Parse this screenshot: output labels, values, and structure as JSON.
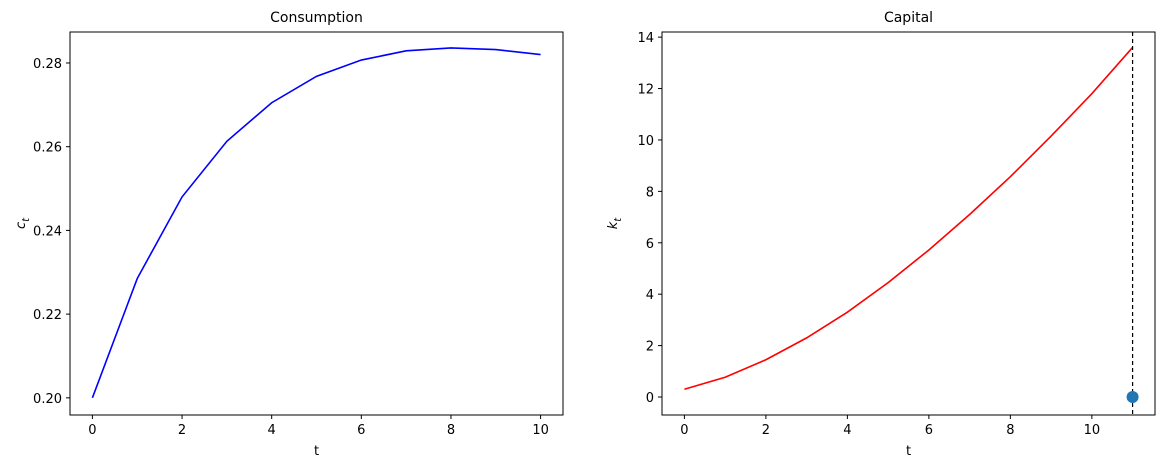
{
  "chart_data": [
    {
      "type": "line",
      "title": "Consumption",
      "xlabel": "t",
      "ylabel": {
        "main": "c",
        "sub": "t"
      },
      "x": [
        0,
        1,
        2,
        3,
        4,
        5,
        6,
        7,
        8,
        9,
        10
      ],
      "series": [
        {
          "color": "#0000ff",
          "values": [
            0.2,
            0.2285,
            0.248,
            0.2613,
            0.2705,
            0.2768,
            0.2807,
            0.2829,
            0.2836,
            0.2832,
            0.282
          ]
        }
      ],
      "xlim": [
        -0.5,
        10.5
      ],
      "xticks": [
        0,
        2,
        4,
        6,
        8,
        10
      ],
      "ylim": [
        0.1959,
        0.2874
      ],
      "yticks": [
        {
          "value": 0.2,
          "label": "0.20"
        },
        0.22,
        0.24,
        0.26,
        0.28
      ]
    },
    {
      "type": "line",
      "title": "Capital",
      "xlabel": "t",
      "ylabel": {
        "main": "k",
        "sub": "t"
      },
      "x": [
        0,
        1,
        2,
        3,
        4,
        5,
        6,
        7,
        8,
        9,
        10,
        11
      ],
      "series": [
        {
          "color": "#ff0000",
          "values": [
            0.3,
            0.77,
            1.45,
            2.3,
            3.3,
            4.45,
            5.72,
            7.1,
            8.57,
            10.15,
            11.8,
            13.6
          ]
        }
      ],
      "vline": {
        "x": 11,
        "color": "#000000",
        "dashed": true
      },
      "points": {
        "x": [
          11
        ],
        "y": [
          0
        ],
        "color": "#1f77b4"
      },
      "xlim": [
        -0.55,
        11.55
      ],
      "xticks": [
        0,
        2,
        4,
        6,
        8,
        10
      ],
      "ylim": [
        -0.7,
        14.2
      ],
      "yticks": [
        0,
        2,
        4,
        6,
        8,
        10,
        12,
        14
      ]
    }
  ]
}
